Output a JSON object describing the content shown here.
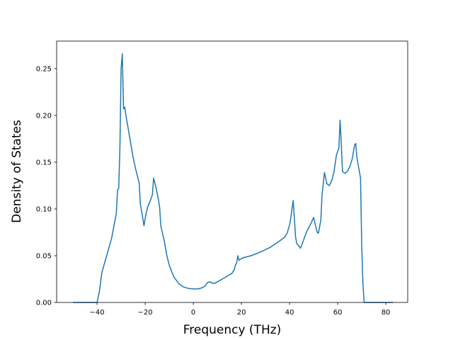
{
  "chart_data": {
    "type": "line",
    "x_label": "Frequency (THz)",
    "y_label": "Density of States",
    "xlim": [
      -56.8,
      89.1
    ],
    "ylim": [
      0,
      0.2795
    ],
    "xticks": [
      {
        "value": -40,
        "label": "−40"
      },
      {
        "value": -20,
        "label": "−20"
      },
      0,
      20,
      40,
      60,
      80
    ],
    "yticks": [
      {
        "value": 0,
        "label": "0.00"
      },
      0.05,
      {
        "value": 0.1,
        "label": "0.10"
      },
      0.15,
      {
        "value": 0.2,
        "label": "0.20"
      },
      0.25
    ],
    "series": [
      {
        "color": "#1f77b4",
        "x": [
          -50,
          -40,
          -39,
          -38,
          -36,
          -34,
          -32,
          -31.5,
          -31,
          -30.5,
          -30,
          -29.5,
          -29,
          -28.5,
          -28,
          -27,
          -26,
          -25,
          -24,
          -23,
          -22.5,
          -22,
          -21,
          -20.5,
          -20,
          -19,
          -18,
          -17,
          -16.5,
          -15.5,
          -14.5,
          -14,
          -13.5,
          -12,
          -11,
          -10,
          -9,
          -8,
          -6,
          -4,
          -2,
          0,
          2,
          4,
          5,
          6,
          7,
          8,
          9,
          10,
          12,
          14,
          16,
          17,
          17.5,
          18,
          18.5,
          19,
          20,
          21,
          24,
          28,
          32,
          36,
          38,
          39,
          40,
          40.5,
          41,
          41.5,
          42,
          42.5,
          43,
          44,
          44.5,
          45,
          46,
          47,
          48,
          49,
          50,
          51,
          51.5,
          52,
          53,
          53.5,
          54.5,
          55.5,
          56.5,
          57.5,
          58.5,
          59.5,
          60.5,
          61,
          61.5,
          62,
          63,
          64,
          65,
          66,
          67,
          67.5,
          68,
          69,
          69.5,
          70,
          70.5,
          71,
          83
        ],
        "values": [
          0,
          0,
          0.012,
          0.032,
          0.05,
          0.068,
          0.095,
          0.12,
          0.122,
          0.165,
          0.25,
          0.266,
          0.207,
          0.209,
          0.2,
          0.185,
          0.17,
          0.155,
          0.143,
          0.133,
          0.128,
          0.105,
          0.09,
          0.082,
          0.09,
          0.102,
          0.108,
          0.115,
          0.133,
          0.123,
          0.11,
          0.102,
          0.082,
          0.065,
          0.05,
          0.04,
          0.033,
          0.027,
          0.02,
          0.0165,
          0.015,
          0.0145,
          0.0145,
          0.016,
          0.018,
          0.0215,
          0.022,
          0.0205,
          0.0205,
          0.022,
          0.025,
          0.028,
          0.031,
          0.035,
          0.04,
          0.042,
          0.05,
          0.045,
          0.047,
          0.048,
          0.05,
          0.054,
          0.059,
          0.066,
          0.07,
          0.074,
          0.083,
          0.09,
          0.1,
          0.109,
          0.09,
          0.07,
          0.063,
          0.06,
          0.058,
          0.061,
          0.068,
          0.075,
          0.08,
          0.085,
          0.091,
          0.08,
          0.075,
          0.074,
          0.088,
          0.115,
          0.139,
          0.127,
          0.125,
          0.13,
          0.14,
          0.158,
          0.165,
          0.195,
          0.17,
          0.14,
          0.138,
          0.14,
          0.145,
          0.153,
          0.168,
          0.17,
          0.155,
          0.14,
          0.133,
          0.06,
          0.02,
          0,
          0
        ]
      }
    ]
  }
}
